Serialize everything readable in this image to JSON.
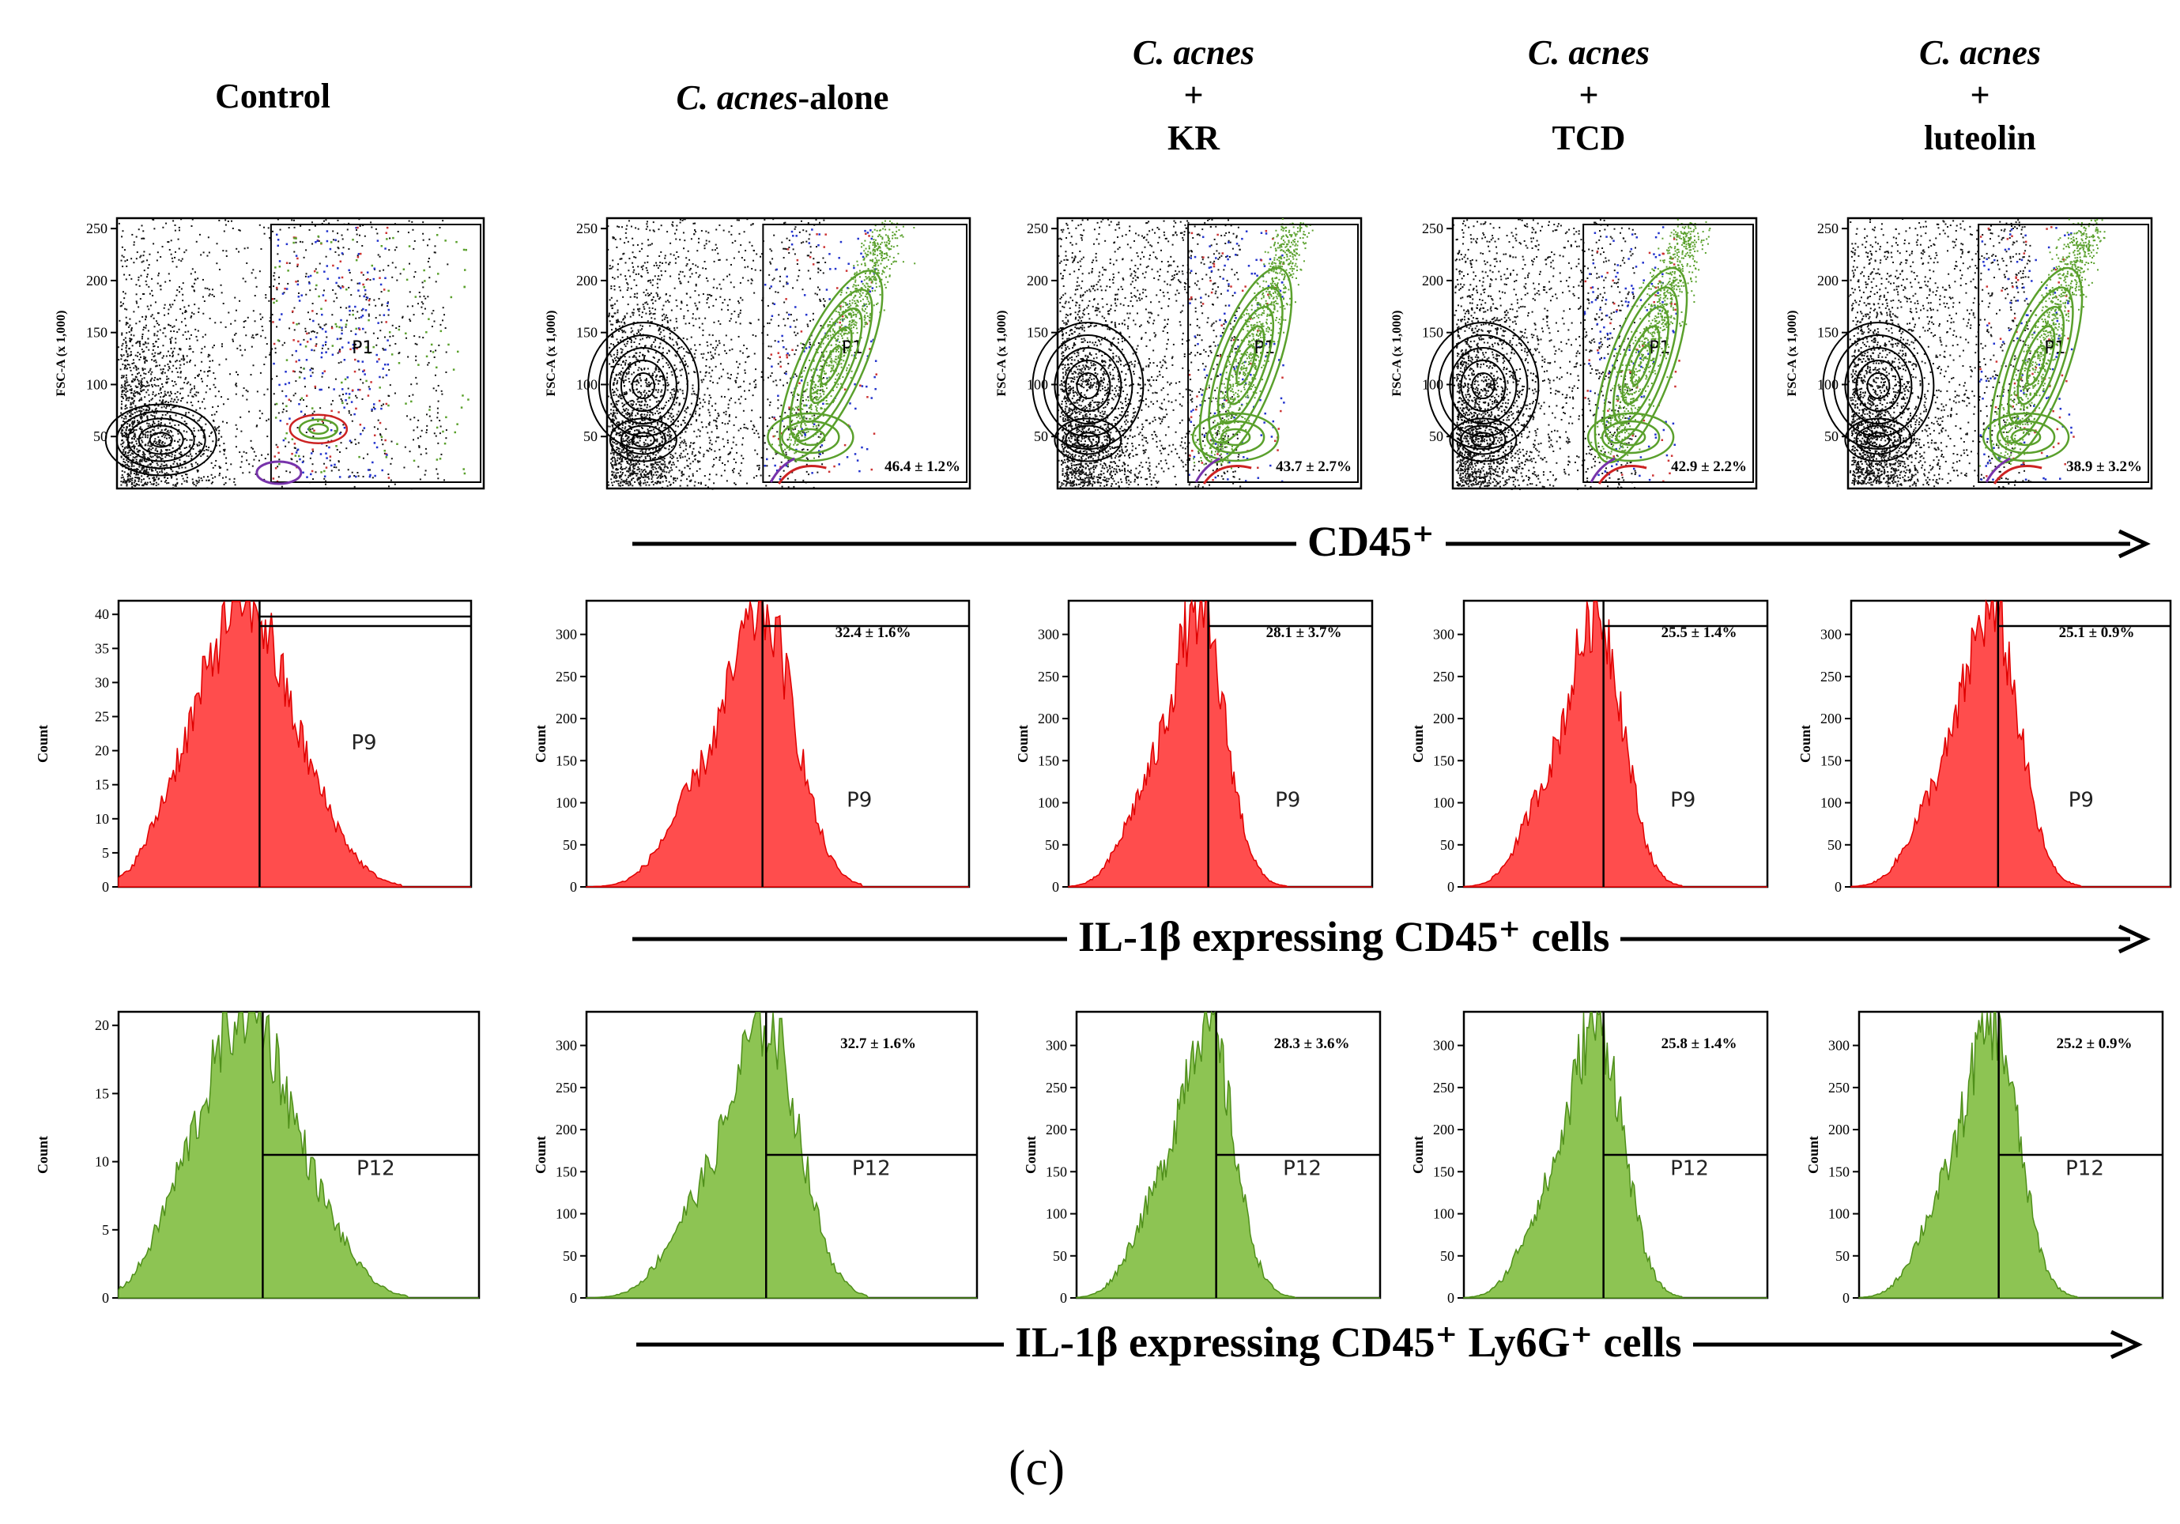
{
  "figure_label": "(c)",
  "columns": [
    {
      "id": "control",
      "title_lines": [
        "Control"
      ]
    },
    {
      "id": "alone",
      "title_lines": [
        "C. acnes-alone"
      ]
    },
    {
      "id": "kr",
      "title_lines": [
        "C. acnes",
        "+",
        "KR"
      ]
    },
    {
      "id": "tcd",
      "title_lines": [
        "C. acnes",
        "+",
        "TCD"
      ]
    },
    {
      "id": "luteolin",
      "title_lines": [
        "C. acnes",
        "+",
        "luteolin"
      ]
    }
  ],
  "title_parts": {
    "alone_italic": "C. acnes",
    "alone_rest": "-alone"
  },
  "row_labels": {
    "row1": "CD45⁺",
    "row2": "IL-1β expressing CD45⁺ cells",
    "row3": "IL-1β expressing CD45⁺ Ly6G⁺ cells"
  },
  "colors": {
    "red_hist": "#ff4d4d",
    "red_line": "#e00000",
    "green_hist": "#8dc453",
    "green_line": "#4f8f1a",
    "contour_green": "#5aa02c",
    "dot_black": "#111111",
    "dot_blue": "#2233cc"
  },
  "chart_data": [
    {
      "type": "scatter",
      "row": "CD45+ gating (FSC-A vs CD45)",
      "ylabel": "FSC-A (x 1,000)",
      "yticks": [
        "250",
        "200",
        "150",
        "100",
        "50"
      ],
      "ylim": [
        0,
        260
      ],
      "gate": "P1",
      "values": [
        {
          "group": "Control",
          "percent": null,
          "label": ""
        },
        {
          "group": "C. acnes-alone",
          "percent": 46.4,
          "label": "46.4 ± 1.2%"
        },
        {
          "group": "C. acnes + KR",
          "percent": 43.7,
          "label": "43.7 ± 2.7%"
        },
        {
          "group": "C. acnes + TCD",
          "percent": 42.9,
          "label": "42.9 ± 2.2%"
        },
        {
          "group": "C. acnes + luteolin",
          "percent": 38.9,
          "label": "38.9 ± 3.2%"
        }
      ]
    },
    {
      "type": "histogram",
      "row": "IL-1β expressing CD45+ cells",
      "ylabel": "Count",
      "gate": "P9",
      "control_yticks": [
        "40",
        "35",
        "30",
        "25",
        "20",
        "15",
        "10",
        "5",
        "0"
      ],
      "control_ylim": [
        0,
        42
      ],
      "treated_yticks": [
        "300",
        "250",
        "200",
        "150",
        "100",
        "50",
        "0"
      ],
      "treated_ylim": [
        0,
        340
      ],
      "values": [
        {
          "group": "Control",
          "percent": null,
          "label": ""
        },
        {
          "group": "C. acnes-alone",
          "percent": 32.4,
          "label": "32.4 ± 1.6%"
        },
        {
          "group": "C. acnes + KR",
          "percent": 28.1,
          "label": "28.1 ± 3.7%"
        },
        {
          "group": "C. acnes + TCD",
          "percent": 25.5,
          "label": "25.5 ± 1.4%"
        },
        {
          "group": "C. acnes + luteolin",
          "percent": 25.1,
          "label": "25.1 ± 0.9%"
        }
      ]
    },
    {
      "type": "histogram",
      "row": "IL-1β expressing CD45+ Ly6G+ cells",
      "ylabel": "Count",
      "gate": "P12",
      "control_yticks": [
        "20",
        "15",
        "10",
        "5",
        "0"
      ],
      "control_ylim": [
        0,
        21
      ],
      "treated_yticks": [
        "300",
        "250",
        "200",
        "150",
        "100",
        "50",
        "0"
      ],
      "treated_ylim": [
        0,
        340
      ],
      "values": [
        {
          "group": "Control",
          "percent": null,
          "label": ""
        },
        {
          "group": "C. acnes-alone",
          "percent": 32.7,
          "label": "32.7 ± 1.6%"
        },
        {
          "group": "C. acnes + KR",
          "percent": 28.3,
          "label": "28.3 ± 3.6%"
        },
        {
          "group": "C. acnes + TCD",
          "percent": 25.8,
          "label": "25.8 ± 1.4%"
        },
        {
          "group": "C. acnes + luteolin",
          "percent": 25.2,
          "label": "25.2 ± 0.9%"
        }
      ]
    }
  ]
}
